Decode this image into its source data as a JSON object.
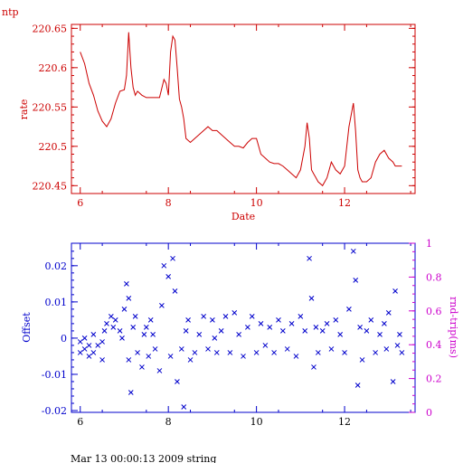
{
  "page_label": "ntp",
  "footer_text": "Mar 13 00:00:13 2009 string",
  "colors": {
    "rate": "#cc0000",
    "offset": "#0000cc",
    "rtt": "#cc00cc",
    "footer": "#000000"
  },
  "chart_data": [
    {
      "type": "line",
      "xlabel": "Date",
      "ylabel": "rate",
      "xlim": [
        5.8,
        13.6
      ],
      "ylim": [
        220.44,
        220.655
      ],
      "xticks": [
        6,
        8,
        10,
        12
      ],
      "yticks": [
        220.45,
        220.5,
        220.55,
        220.6,
        220.65
      ],
      "xtick_labels": [
        "6",
        "8",
        "10",
        "12"
      ],
      "ytick_labels": [
        "220.45",
        "220.5",
        "220.55",
        "220.6",
        "220.65"
      ],
      "grid": false,
      "series": [
        {
          "x": [
            6.0,
            6.1,
            6.2,
            6.3,
            6.4,
            6.5,
            6.6,
            6.7,
            6.8,
            6.9,
            7.0,
            7.05,
            7.1,
            7.15,
            7.2,
            7.25,
            7.3,
            7.4,
            7.5,
            7.6,
            7.7,
            7.8,
            7.9,
            7.95,
            8.0,
            8.05,
            8.1,
            8.15,
            8.2,
            8.25,
            8.3,
            8.35,
            8.4,
            8.5,
            8.6,
            8.7,
            8.8,
            8.9,
            9.0,
            9.1,
            9.2,
            9.3,
            9.4,
            9.5,
            9.6,
            9.7,
            9.8,
            9.9,
            10.0,
            10.1,
            10.2,
            10.3,
            10.4,
            10.5,
            10.6,
            10.7,
            10.8,
            10.9,
            11.0,
            11.1,
            11.15,
            11.2,
            11.25,
            11.3,
            11.35,
            11.4,
            11.5,
            11.6,
            11.7,
            11.8,
            11.9,
            12.0,
            12.1,
            12.2,
            12.25,
            12.3,
            12.35,
            12.4,
            12.5,
            12.6,
            12.7,
            12.8,
            12.9,
            13.0,
            13.1,
            13.15,
            13.2,
            13.3
          ],
          "y": [
            220.62,
            220.605,
            220.58,
            220.565,
            220.545,
            220.532,
            220.525,
            220.535,
            220.555,
            220.57,
            220.572,
            220.59,
            220.645,
            220.6,
            220.575,
            220.565,
            220.57,
            220.565,
            220.562,
            220.562,
            220.562,
            220.562,
            220.585,
            220.58,
            220.565,
            220.62,
            220.64,
            220.635,
            220.6,
            220.56,
            220.55,
            220.535,
            220.51,
            220.505,
            220.51,
            220.515,
            220.52,
            220.525,
            220.52,
            220.52,
            220.515,
            220.51,
            220.505,
            220.5,
            220.5,
            220.498,
            220.505,
            220.51,
            220.51,
            220.49,
            220.485,
            220.48,
            220.478,
            220.478,
            220.475,
            220.47,
            220.465,
            220.46,
            220.47,
            220.5,
            220.53,
            220.51,
            220.47,
            220.465,
            220.46,
            220.455,
            220.45,
            220.46,
            220.48,
            220.47,
            220.465,
            220.475,
            220.525,
            220.555,
            220.52,
            220.47,
            220.46,
            220.455,
            220.455,
            220.46,
            220.48,
            220.49,
            220.495,
            220.485,
            220.48,
            220.475,
            220.475,
            220.475
          ]
        }
      ]
    },
    {
      "type": "scatter",
      "xlim": [
        5.8,
        13.6
      ],
      "ylim": [
        -0.0205,
        0.0262
      ],
      "y2lim": [
        0,
        1
      ],
      "xticks": [
        6,
        8,
        10,
        12
      ],
      "yticks": [
        -0.02,
        -0.01,
        0,
        0.01,
        0.02
      ],
      "y2ticks": [
        0,
        0.2,
        0.4,
        0.6,
        0.8,
        1
      ],
      "xtick_labels": [
        "6",
        "8",
        "10",
        "12"
      ],
      "ytick_labels": [
        "-0.02",
        "-0.01",
        "0",
        "0.01",
        "0.02"
      ],
      "y2tick_labels": [
        "0",
        "0.2",
        "0.4",
        "0.6",
        "0.8",
        "1"
      ],
      "ylabel": "Offset",
      "y2label": "rnd-trip(ms)",
      "marker": "x",
      "grid": false,
      "series": [
        {
          "x": [
            6.0,
            6.0,
            6.1,
            6.1,
            6.2,
            6.2,
            6.3,
            6.3,
            6.4,
            6.5,
            6.5,
            6.55,
            6.6,
            6.7,
            6.75,
            6.8,
            6.9,
            6.95,
            7.0,
            7.05,
            7.1,
            7.1,
            7.15,
            7.2,
            7.25,
            7.3,
            7.4,
            7.45,
            7.5,
            7.55,
            7.6,
            7.65,
            7.7,
            7.8,
            7.85,
            7.9,
            8.0,
            8.05,
            8.1,
            8.15,
            8.2,
            8.3,
            8.35,
            8.4,
            8.45,
            8.5,
            8.6,
            8.7,
            8.8,
            8.9,
            9.0,
            9.05,
            9.1,
            9.2,
            9.3,
            9.4,
            9.5,
            9.6,
            9.7,
            9.8,
            9.9,
            10.0,
            10.1,
            10.2,
            10.3,
            10.4,
            10.5,
            10.6,
            10.7,
            10.8,
            10.9,
            11.0,
            11.1,
            11.2,
            11.25,
            11.3,
            11.35,
            11.4,
            11.5,
            11.6,
            11.7,
            11.8,
            11.9,
            12.0,
            12.1,
            12.2,
            12.25,
            12.3,
            12.35,
            12.4,
            12.5,
            12.6,
            12.7,
            12.8,
            12.9,
            12.95,
            13.0,
            13.1,
            13.15,
            13.2,
            13.25,
            13.3
          ],
          "y": [
            -0.001,
            -0.004,
            0.0,
            -0.003,
            -0.002,
            -0.005,
            0.001,
            -0.004,
            -0.002,
            -0.006,
            -0.001,
            0.002,
            0.004,
            0.006,
            0.003,
            0.005,
            0.002,
            0.0,
            0.008,
            0.015,
            -0.006,
            0.011,
            -0.015,
            0.003,
            0.006,
            -0.004,
            -0.008,
            0.001,
            0.003,
            -0.005,
            0.005,
            0.001,
            -0.003,
            -0.009,
            0.009,
            0.02,
            0.017,
            -0.005,
            0.022,
            0.013,
            -0.012,
            -0.003,
            -0.019,
            0.002,
            0.005,
            -0.006,
            -0.004,
            0.001,
            0.006,
            -0.003,
            0.005,
            0.0,
            -0.004,
            0.002,
            0.006,
            -0.004,
            0.007,
            0.001,
            -0.005,
            0.003,
            0.006,
            -0.004,
            0.004,
            -0.002,
            0.003,
            -0.004,
            0.005,
            0.002,
            -0.003,
            0.004,
            -0.005,
            0.006,
            0.002,
            0.022,
            0.011,
            -0.008,
            0.003,
            -0.004,
            0.002,
            0.004,
            -0.003,
            0.005,
            0.001,
            -0.004,
            0.008,
            0.024,
            0.016,
            -0.013,
            0.003,
            -0.006,
            0.002,
            0.005,
            -0.004,
            0.001,
            0.004,
            -0.003,
            0.007,
            -0.012,
            0.013,
            -0.002,
            0.001,
            -0.004
          ]
        }
      ]
    }
  ]
}
